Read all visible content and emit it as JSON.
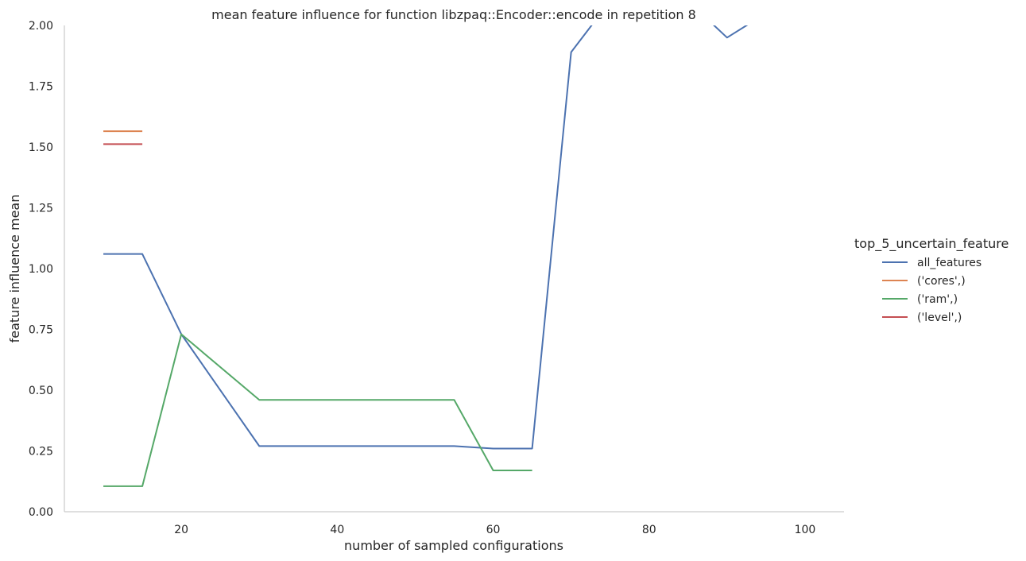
{
  "chart_data": {
    "type": "line",
    "title": "mean feature influence for function libzpaq::Encoder::encode in repetition 8",
    "xlabel": "number of sampled configurations",
    "ylabel": "feature influence mean",
    "xlim": [
      5,
      105
    ],
    "ylim": [
      0,
      2.0
    ],
    "x_ticks": [
      20,
      40,
      60,
      80,
      100
    ],
    "y_ticks": [
      0.0,
      0.25,
      0.5,
      0.75,
      1.0,
      1.25,
      1.5,
      1.75,
      2.0
    ],
    "x_tick_labels": [
      "20",
      "40",
      "60",
      "80",
      "100"
    ],
    "y_tick_labels": [
      "0.00",
      "0.25",
      "0.50",
      "0.75",
      "1.00",
      "1.25",
      "1.50",
      "1.75",
      "2.00"
    ],
    "grid": false,
    "legend_placement": "right",
    "legend_title": "top_5_uncertain_feature",
    "series": [
      {
        "name": "all_features",
        "color": "#4c72b0",
        "points": [
          [
            10,
            1.06
          ],
          [
            15,
            1.06
          ],
          [
            20,
            0.73
          ],
          [
            30,
            0.27
          ],
          [
            35,
            0.27
          ],
          [
            40,
            0.27
          ],
          [
            45,
            0.27
          ],
          [
            50,
            0.27
          ],
          [
            55,
            0.27
          ],
          [
            60,
            0.26
          ],
          [
            65,
            0.26
          ],
          [
            70,
            1.89
          ],
          [
            75,
            2.1
          ],
          [
            80,
            2.1
          ],
          [
            85,
            2.1
          ],
          [
            90,
            1.95
          ],
          [
            95,
            2.05
          ]
        ]
      },
      {
        "name": "('cores',)",
        "color": "#dd8452",
        "points": [
          [
            10,
            1.565
          ],
          [
            15,
            1.565
          ]
        ]
      },
      {
        "name": "('ram',)",
        "color": "#55a868",
        "points": [
          [
            10,
            0.105
          ],
          [
            15,
            0.105
          ],
          [
            20,
            0.73
          ],
          [
            30,
            0.46
          ],
          [
            35,
            0.46
          ],
          [
            40,
            0.46
          ],
          [
            45,
            0.46
          ],
          [
            50,
            0.46
          ],
          [
            55,
            0.46
          ],
          [
            60,
            0.17
          ],
          [
            65,
            0.17
          ]
        ]
      },
      {
        "name": "('level',)",
        "color": "#c44e52",
        "points": [
          [
            10,
            1.512
          ],
          [
            15,
            1.512
          ]
        ]
      }
    ]
  }
}
